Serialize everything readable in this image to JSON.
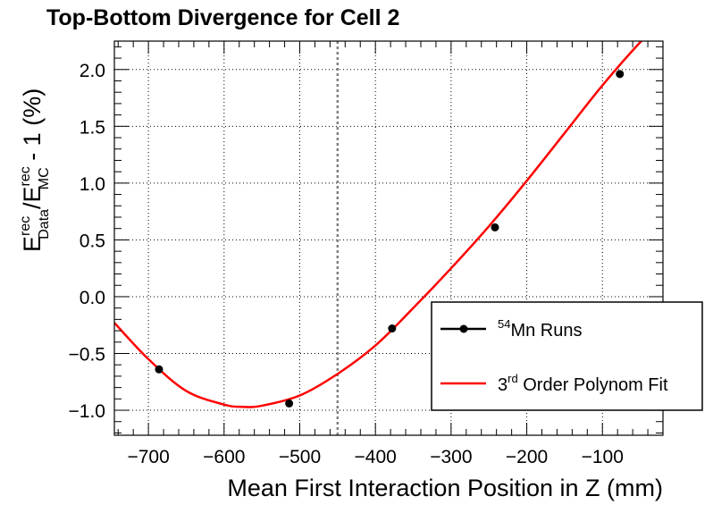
{
  "chart_data": {
    "type": "scatter",
    "title": "Top-Bottom Divergence for Cell 2",
    "xlabel": "Mean First Interaction Position in Z (mm)",
    "ylabel": {
      "base1": "E",
      "sup1": "rec",
      "sub1": "Data",
      "slash": "/E",
      "sup2": "rec",
      "sub2": "MC",
      "tail": " - 1  (%)"
    },
    "xlim": [
      -745,
      -20
    ],
    "ylim": [
      -1.22,
      2.25
    ],
    "x_ticks": [
      -700,
      -600,
      -500,
      -400,
      -300,
      -200,
      -100
    ],
    "x_tick_labels": [
      "−700",
      "−600",
      "−500",
      "−400",
      "−300",
      "−200",
      "−100"
    ],
    "y_ticks": [
      -1.0,
      -0.5,
      0.0,
      0.5,
      1.0,
      1.5,
      2.0
    ],
    "y_tick_labels": [
      "−1.0",
      "−0.5",
      "0.0",
      "0.5",
      "1.0",
      "1.5",
      "2.0"
    ],
    "grid": true,
    "vertical_line_x": -450,
    "series": [
      {
        "name": "Mn Runs",
        "kind": "points",
        "color": "#000000",
        "x": [
          -686,
          -514,
          -378,
          -242,
          -77
        ],
        "y": [
          -0.64,
          -0.94,
          -0.28,
          0.61,
          1.96
        ]
      },
      {
        "name": "Order Polynom Fit",
        "kind": "fit",
        "color": "#ff0000",
        "x": [
          -745,
          -700,
          -650,
          -600,
          -575,
          -550,
          -500,
          -450,
          -400,
          -350,
          -300,
          -250,
          -200,
          -150,
          -100,
          -50,
          -20
        ],
        "y": [
          -0.23,
          -0.55,
          -0.83,
          -0.95,
          -0.97,
          -0.96,
          -0.87,
          -0.68,
          -0.43,
          -0.1,
          0.25,
          0.62,
          1.02,
          1.44,
          1.86,
          2.24,
          2.43
        ]
      }
    ],
    "legend": {
      "placement": "bottom-right",
      "entries": [
        {
          "pre_sup": "54",
          "text": "Mn Runs"
        },
        {
          "pre": "3",
          "sup": "rd",
          "text": " Order Polynom Fit"
        }
      ]
    }
  }
}
